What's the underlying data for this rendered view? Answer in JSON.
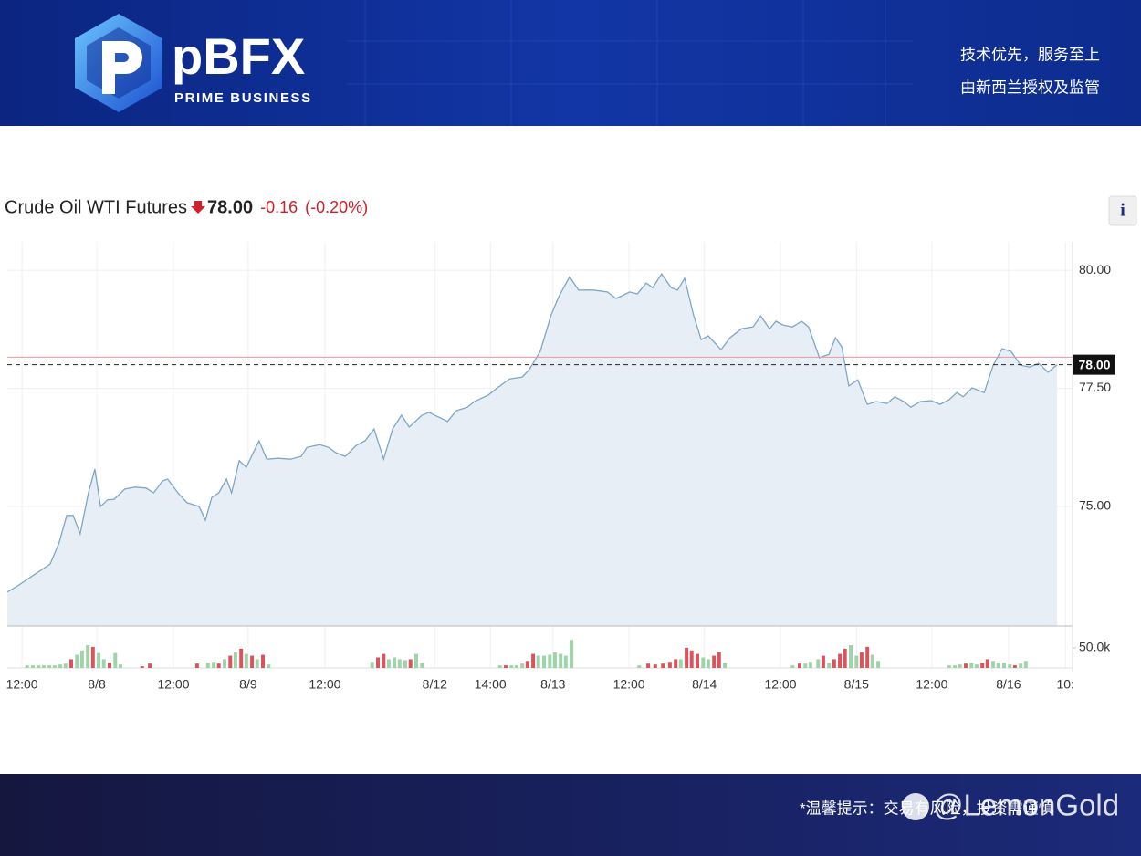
{
  "header": {
    "logo": "pBFX",
    "tagline": "PRIME BUSINESS",
    "slogan_lines": [
      "技术优先，服务至上",
      "由新西兰授权及监管"
    ]
  },
  "chart_data": {
    "type": "area",
    "title": "Crude Oil WTI Futures",
    "change": "-0.16",
    "change_percent": "(-0.20%)",
    "info_button": "i",
    "x": [
      0,
      1.4,
      6.7,
      8.1,
      9.3,
      10.3,
      11.4,
      12.7,
      13.7,
      14.6,
      15.7,
      16.7,
      18.4,
      20,
      21.7,
      22.9,
      24.3,
      25.1,
      26.7,
      28.1,
      30,
      31,
      32,
      33.1,
      34.3,
      35.1,
      36.3,
      37.4,
      39.4,
      40.6,
      42.4,
      44.3,
      46,
      46.9,
      48.9,
      50.3,
      51.4,
      52.9,
      54.6,
      56,
      57.4,
      58.9,
      60.3,
      61.7,
      62.9,
      64.9,
      66,
      68.9,
      70.3,
      72,
      73.1,
      75.3,
      76.7,
      78.6,
      80.6,
      81.7,
      83.4,
      85.1,
      86.3,
      88,
      89.4,
      91.7,
      93.9,
      95.3,
      97.4,
      98.6,
      100,
      101,
      102.4,
      103.9,
      104.9,
      106,
      107.4,
      108.6,
      109.7,
      111.7,
      113.1,
      114.9,
      116.7,
      117.9,
      119.3,
      120.3,
      121.4,
      122.9,
      124.3,
      125.4,
      127.1,
      128.6,
      129.6,
      130.6,
      131.7,
      133.1,
      134.6,
      136,
      137.7,
      138.9,
      140.3,
      141.4,
      142.9,
      144.6,
      146,
      147.4,
      148.6,
      149.6,
      151,
      152.9,
      154.3,
      155.7,
      157.1,
      158.6,
      160,
      161.4,
      162.9,
      164.3
    ],
    "series": [
      {
        "color": "#7ea6c6",
        "fill": "#e7eef6",
        "values": [
          73.19,
          73.3,
          73.78,
          74.23,
          74.81,
          74.81,
          74.42,
          75.29,
          75.79,
          75.0,
          75.14,
          75.15,
          75.37,
          75.41,
          75.39,
          75.29,
          75.54,
          75.58,
          75.29,
          75.08,
          75.0,
          74.71,
          75.19,
          75.29,
          75.58,
          75.29,
          75.97,
          75.83,
          76.39,
          76.0,
          76.02,
          76.0,
          76.06,
          76.25,
          76.31,
          76.25,
          76.14,
          76.06,
          76.29,
          76.39,
          76.64,
          76.0,
          76.64,
          76.93,
          76.68,
          76.93,
          76.99,
          76.8,
          77.03,
          77.1,
          77.22,
          77.36,
          77.51,
          77.7,
          77.74,
          77.9,
          78.28,
          79.05,
          79.44,
          79.86,
          79.58,
          79.58,
          79.54,
          79.4,
          79.54,
          79.5,
          79.73,
          79.63,
          79.92,
          79.63,
          79.58,
          79.83,
          79.05,
          78.53,
          78.61,
          78.32,
          78.57,
          78.76,
          78.8,
          79.03,
          78.76,
          78.92,
          78.84,
          78.8,
          78.92,
          78.8,
          78.15,
          78.22,
          78.57,
          78.38,
          77.55,
          77.68,
          77.16,
          77.22,
          77.18,
          77.32,
          77.22,
          77.1,
          77.22,
          77.24,
          77.16,
          77.26,
          77.41,
          77.32,
          77.51,
          77.41,
          77.99,
          78.34,
          78.28,
          77.99,
          77.95,
          78.03,
          77.84,
          78.0
        ]
      }
    ],
    "xlim": [
      0,
      167
    ],
    "xticks": [
      {
        "value": 2.3,
        "label": "12:00"
      },
      {
        "value": 14,
        "label": "8/8"
      },
      {
        "value": 26,
        "label": "12:00"
      },
      {
        "value": 37.7,
        "label": "8/9"
      },
      {
        "value": 49.7,
        "label": "12:00"
      },
      {
        "value": 66.9,
        "label": "8/12"
      },
      {
        "value": 75.6,
        "label": "14:00"
      },
      {
        "value": 85.4,
        "label": "8/13"
      },
      {
        "value": 97.3,
        "label": "12:00"
      },
      {
        "value": 109.1,
        "label": "8/14"
      },
      {
        "value": 121,
        "label": "12:00"
      },
      {
        "value": 132.9,
        "label": "8/15"
      },
      {
        "value": 144.7,
        "label": "12:00"
      },
      {
        "value": 156.7,
        "label": "8/16"
      },
      {
        "value": 165.6,
        "label": "10:"
      }
    ],
    "ylim": [
      72.47,
      80.6
    ],
    "yticks": [
      {
        "value": 75,
        "label": "75.00"
      },
      {
        "value": 77.5,
        "label": "77.50"
      },
      {
        "value": 80,
        "label": "80.00"
      }
    ],
    "grid": true,
    "last": {
      "value": 78,
      "label": "78.00"
    },
    "prev_close": 78.16,
    "prev_close_color": "#e89a9a",
    "change_color": "#d0202a",
    "volume": {
      "x": [
        3.1,
        4,
        4.9,
        5.7,
        6.6,
        7.4,
        8.3,
        9.1,
        10,
        10.9,
        11.7,
        12.6,
        13.4,
        14.3,
        15.1,
        16,
        16.9,
        17.7,
        21.1,
        22.3,
        29.7,
        31.4,
        32.3,
        33.1,
        34,
        34.9,
        35.7,
        36.6,
        37.4,
        38.3,
        39.1,
        40,
        40.9,
        57.1,
        58,
        58.9,
        59.7,
        60.6,
        61.4,
        62.3,
        63.1,
        64,
        64.9,
        77.1,
        78,
        78.9,
        79.7,
        80.6,
        81.4,
        82.3,
        83.1,
        84,
        84.9,
        85.7,
        86.6,
        87.4,
        88.3,
        98.9,
        100.3,
        101.4,
        102.6,
        103.7,
        104.6,
        105.4,
        106.3,
        107.1,
        108,
        108.9,
        109.7,
        110.6,
        111.4,
        112.3,
        122.9,
        124,
        124.9,
        125.7,
        126.9,
        127.7,
        128.6,
        129.4,
        130.3,
        131.1,
        132,
        132.9,
        133.7,
        134.6,
        135.4,
        136.3,
        147.4,
        148.3,
        149.1,
        150,
        150.9,
        151.7,
        152.6,
        153.4,
        154.3,
        155.1,
        156,
        156.9,
        157.7,
        158.6,
        159.4
      ],
      "values": [
        6500,
        6500,
        6500,
        6500,
        6500,
        6500,
        8700,
        10900,
        21700,
        32600,
        43500,
        56500,
        52200,
        37000,
        21700,
        13000,
        37000,
        8700,
        4300,
        10900,
        10900,
        13000,
        15200,
        10900,
        21700,
        30400,
        39100,
        47800,
        34800,
        30400,
        21700,
        32600,
        8700,
        15200,
        26100,
        34800,
        21700,
        26100,
        21700,
        19600,
        21700,
        34800,
        13000,
        6500,
        6500,
        6500,
        6500,
        10900,
        17400,
        34800,
        30400,
        30400,
        32600,
        39100,
        34800,
        30400,
        69600,
        6500,
        10900,
        8700,
        10900,
        15200,
        21700,
        21700,
        50000,
        43500,
        34800,
        26100,
        21700,
        30400,
        39100,
        13000,
        6500,
        10900,
        10900,
        15200,
        21700,
        30400,
        13000,
        21700,
        34800,
        47800,
        56500,
        30400,
        39100,
        52200,
        32600,
        17400,
        6500,
        6500,
        8700,
        10900,
        13000,
        8700,
        13000,
        21700,
        17400,
        13000,
        13000,
        8700,
        6500,
        10900,
        17400
      ],
      "colors": [
        "#9fd3a9",
        "#9fd3a9",
        "#9fd3a9",
        "#9fd3a9",
        "#9fd3a9",
        "#9fd3a9",
        "#9fd3a9",
        "#9fd3a9",
        "#d9545c",
        "#9fd3a9",
        "#9fd3a9",
        "#9fd3a9",
        "#d9545c",
        "#9fd3a9",
        "#9fd3a9",
        "#d9545c",
        "#9fd3a9",
        "#9fd3a9",
        "#d9545c",
        "#d9545c",
        "#d9545c",
        "#9fd3a9",
        "#9fd3a9",
        "#d9545c",
        "#9fd3a9",
        "#d9545c",
        "#9fd3a9",
        "#d9545c",
        "#9fd3a9",
        "#d9545c",
        "#9fd3a9",
        "#d9545c",
        "#9fd3a9",
        "#9fd3a9",
        "#d9545c",
        "#d9545c",
        "#9fd3a9",
        "#9fd3a9",
        "#9fd3a9",
        "#9fd3a9",
        "#d9545c",
        "#9fd3a9",
        "#9fd3a9",
        "#9fd3a9",
        "#d9545c",
        "#9fd3a9",
        "#9fd3a9",
        "#9fd3a9",
        "#d9545c",
        "#d9545c",
        "#9fd3a9",
        "#9fd3a9",
        "#9fd3a9",
        "#9fd3a9",
        "#9fd3a9",
        "#9fd3a9",
        "#9fd3a9",
        "#9fd3a9",
        "#d9545c",
        "#d9545c",
        "#d9545c",
        "#d9545c",
        "#d9545c",
        "#9fd3a9",
        "#d9545c",
        "#d9545c",
        "#d9545c",
        "#9fd3a9",
        "#9fd3a9",
        "#d9545c",
        "#d9545c",
        "#9fd3a9",
        "#9fd3a9",
        "#d9545c",
        "#9fd3a9",
        "#9fd3a9",
        "#9fd3a9",
        "#d9545c",
        "#9fd3a9",
        "#d9545c",
        "#d9545c",
        "#d9545c",
        "#9fd3a9",
        "#9fd3a9",
        "#d9545c",
        "#d9545c",
        "#9fd3a9",
        "#9fd3a9",
        "#9fd3a9",
        "#9fd3a9",
        "#9fd3a9",
        "#d9545c",
        "#9fd3a9",
        "#9fd3a9",
        "#d9545c",
        "#d9545c",
        "#9fd3a9",
        "#9fd3a9",
        "#9fd3a9",
        "#9fd3a9",
        "#d9545c",
        "#9fd3a9",
        "#9fd3a9"
      ],
      "ylim": [
        0,
        95000
      ],
      "yticks": [
        {
          "value": 50000,
          "label": "50.0k"
        }
      ]
    }
  },
  "footer": {
    "notice": "*温馨提示：交易有风险，投资需谨慎",
    "watermark": "@LemonGold"
  }
}
